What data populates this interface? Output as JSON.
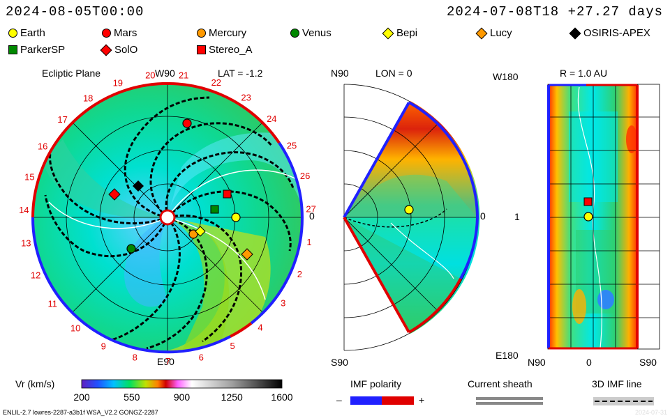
{
  "header": {
    "left_time": "2024-08-05T00:00",
    "right_time": "2024-07-08T18 +27.27 days"
  },
  "legend": [
    {
      "name": "Earth",
      "marker": "circle",
      "color": "#ffff00"
    },
    {
      "name": "Mars",
      "marker": "circle",
      "color": "#ff0000"
    },
    {
      "name": "Mercury",
      "marker": "circle",
      "color": "#ff9900"
    },
    {
      "name": "Venus",
      "marker": "circle",
      "color": "#008800"
    },
    {
      "name": "Bepi",
      "marker": "diamond",
      "color": "#ffff00"
    },
    {
      "name": "Lucy",
      "marker": "diamond",
      "color": "#ff9900"
    },
    {
      "name": "OSIRIS-APEX",
      "marker": "diamond",
      "color": "#000000"
    },
    {
      "name": "ParkerSP",
      "marker": "square",
      "color": "#008800"
    },
    {
      "name": "SolO",
      "marker": "diamond",
      "color": "#ff0000"
    },
    {
      "name": "Stereo_A",
      "marker": "square",
      "color": "#ff0000"
    }
  ],
  "panel1": {
    "title": "Ecliptic Plane",
    "top_label": "W90",
    "lat_label": "LAT = -1.2",
    "bottom_label": "E90",
    "right_label": "0",
    "carrington_ticks": [
      "20",
      "21",
      "22",
      "23",
      "24",
      "25",
      "26",
      "27",
      "1",
      "2",
      "3",
      "4",
      "5",
      "6",
      "7",
      "8",
      "9",
      "10",
      "11",
      "12",
      "13",
      "14",
      "15",
      "16",
      "17",
      "18",
      "19"
    ]
  },
  "panel2": {
    "top_left": "N90",
    "lon_label": "LON = 0",
    "right_label": "0",
    "bottom_left": "S90"
  },
  "panel3": {
    "top_left": "W180",
    "r_label": "R = 1.0 AU",
    "mid_left": "1",
    "bottom_left": "E180",
    "x_left": "N90",
    "x_mid": "0",
    "x_right": "S90"
  },
  "colorbar": {
    "label": "Vr (km/s)",
    "ticks": [
      "200",
      "550",
      "900",
      "1250",
      "1600"
    ]
  },
  "imf": {
    "title": "IMF polarity",
    "minus": "–",
    "plus": "+"
  },
  "sheath": {
    "title": "Current sheath"
  },
  "imfline": {
    "title": "3D IMF line"
  },
  "footer": {
    "left": "ENLIL-2.7 lowres-2287-a3b1f WSA_V2.2 GONGZ-2287",
    "right": "2024-07-31"
  },
  "chart_data": {
    "type": "heatmap",
    "quantity": "Vr (km/s)",
    "colorbar_range": [
      200,
      1600
    ],
    "bodies": [
      "Earth",
      "Mars",
      "Mercury",
      "Venus",
      "Bepi",
      "Lucy",
      "OSIRIS-APEX",
      "ParkerSP",
      "SolO",
      "Stereo_A"
    ]
  }
}
